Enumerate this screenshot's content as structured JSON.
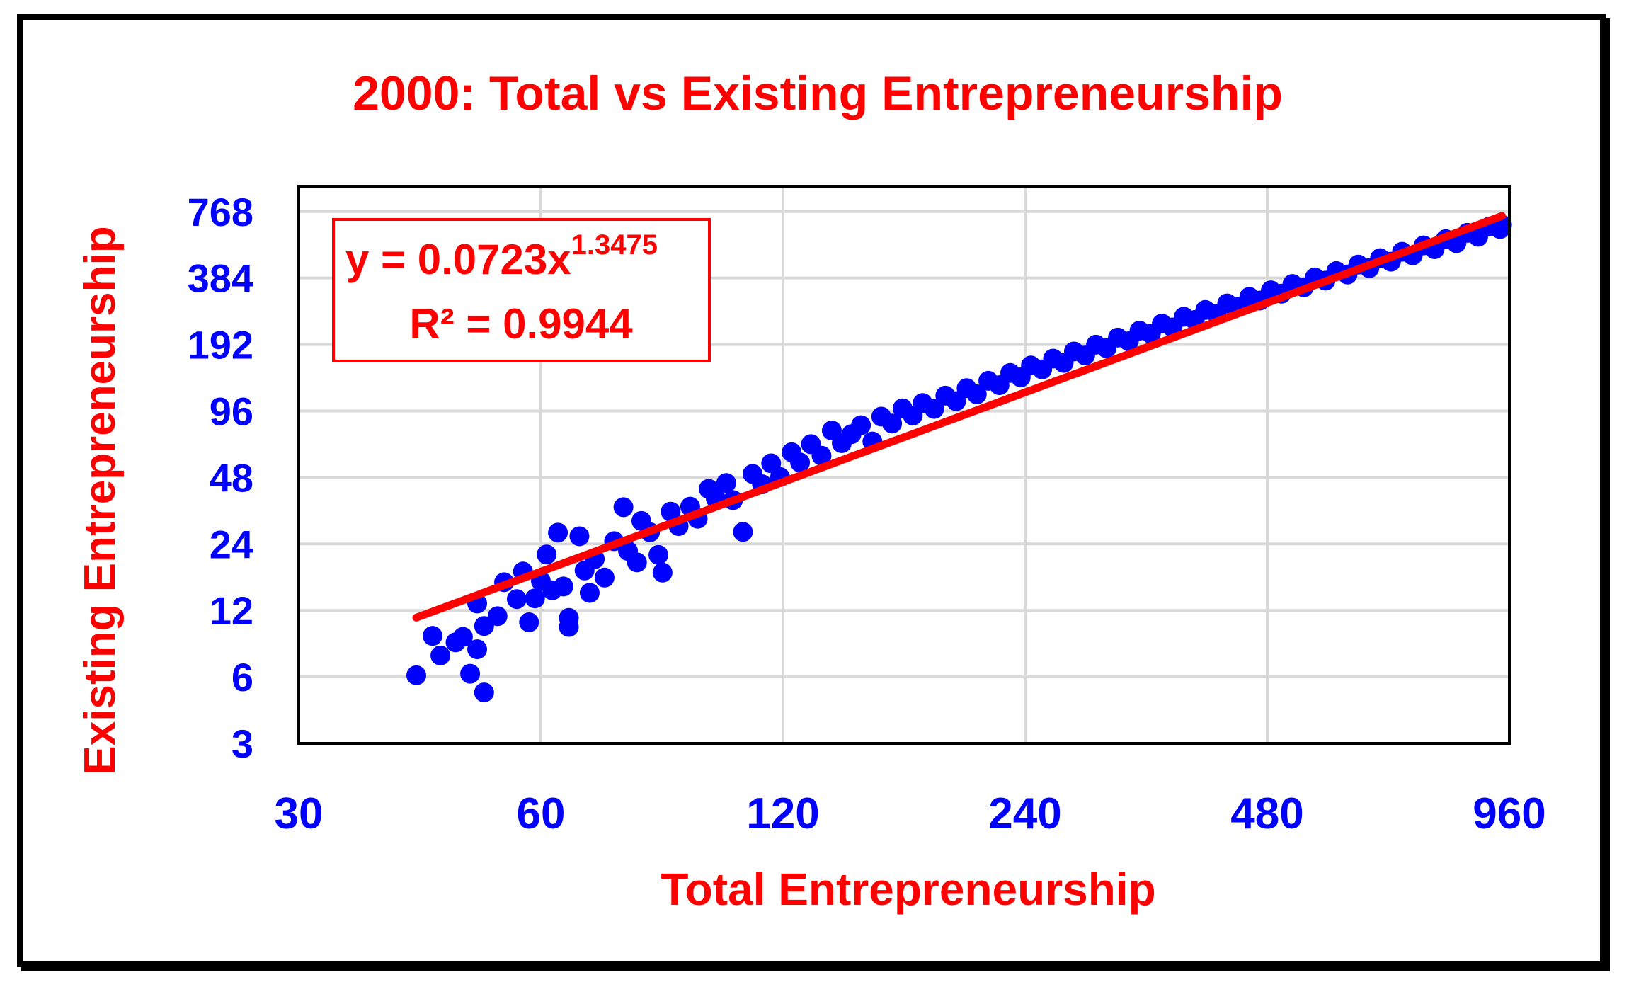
{
  "chart_data": {
    "type": "scatter",
    "title": "2000: Total vs Existing Entrepreneurship",
    "xlabel": "Total Entrepreneurship",
    "ylabel": "Existing Entrepreneurship",
    "x_scale": "log2",
    "y_scale": "log2",
    "xlim": [
      30,
      960
    ],
    "ylim": [
      3,
      1000
    ],
    "x_ticks": [
      "30",
      "60",
      "120",
      "240",
      "480",
      "960"
    ],
    "y_ticks": [
      "3",
      "6",
      "12",
      "24",
      "48",
      "96",
      "192",
      "384",
      "768"
    ],
    "grid": true,
    "trendline": {
      "type": "power",
      "coefficient": 0.0723,
      "exponent": 1.3475,
      "x_range": [
        42,
        940
      ],
      "equation_label": "y = 0.0723x",
      "exponent_label": "1.3475",
      "r2_label": "R² = 0.9944"
    },
    "series": [
      {
        "points": [
          [
            42,
            6.1
          ],
          [
            44,
            9.2
          ],
          [
            45,
            7.5
          ],
          [
            47,
            8.6
          ],
          [
            48,
            9.1
          ],
          [
            49,
            6.2
          ],
          [
            50,
            8.0
          ],
          [
            51,
            10.2
          ],
          [
            51,
            5.1
          ],
          [
            50,
            12.9
          ],
          [
            53,
            11.3
          ],
          [
            54,
            16.1
          ],
          [
            56,
            13.5
          ],
          [
            57,
            18.0
          ],
          [
            58,
            10.6
          ],
          [
            59,
            13.6
          ],
          [
            60,
            16.3
          ],
          [
            61,
            21.5
          ],
          [
            62,
            14.8
          ],
          [
            63,
            27.0
          ],
          [
            64,
            15.4
          ],
          [
            65,
            11.1
          ],
          [
            65,
            10.1
          ],
          [
            67,
            26.0
          ],
          [
            68,
            18.2
          ],
          [
            69,
            14.4
          ],
          [
            70,
            20.5
          ],
          [
            72,
            16.9
          ],
          [
            74,
            24.7
          ],
          [
            76,
            35.2
          ],
          [
            77,
            22.3
          ],
          [
            79,
            19.8
          ],
          [
            80,
            30.5
          ],
          [
            82,
            27.1
          ],
          [
            84,
            21.4
          ],
          [
            85,
            17.8
          ],
          [
            87,
            33.6
          ],
          [
            89,
            28.9
          ],
          [
            92,
            35.4
          ],
          [
            94,
            31.2
          ],
          [
            97,
            42.6
          ],
          [
            99,
            38.5
          ],
          [
            102,
            45.3
          ],
          [
            104,
            37.9
          ],
          [
            107,
            27.2
          ],
          [
            110,
            49.8
          ],
          [
            113,
            44.7
          ],
          [
            116,
            55.6
          ],
          [
            119,
            48.2
          ],
          [
            123,
            62.4
          ],
          [
            126,
            56.1
          ],
          [
            130,
            67.9
          ],
          [
            134,
            60.2
          ],
          [
            138,
            78.3
          ],
          [
            142,
            68.6
          ],
          [
            146,
            75.4
          ],
          [
            150,
            82.7
          ],
          [
            155,
            69.8
          ],
          [
            159,
            90.5
          ],
          [
            164,
            84.2
          ],
          [
            169,
            98.7
          ],
          [
            174,
            91.5
          ],
          [
            179,
            104.3
          ],
          [
            185,
            98.1
          ],
          [
            191,
            112.6
          ],
          [
            197,
            106.4
          ],
          [
            203,
            121.8
          ],
          [
            209,
            114.2
          ],
          [
            216,
            131.5
          ],
          [
            223,
            125.6
          ],
          [
            230,
            142.7
          ],
          [
            237,
            136.3
          ],
          [
            244,
            154.2
          ],
          [
            252,
            148.1
          ],
          [
            260,
            165.7
          ],
          [
            268,
            158.4
          ],
          [
            276,
            178.5
          ],
          [
            285,
            171.2
          ],
          [
            294,
            191.6
          ],
          [
            303,
            184.7
          ],
          [
            313,
            206.3
          ],
          [
            323,
            198.5
          ],
          [
            333,
            221.8
          ],
          [
            344,
            214.6
          ],
          [
            355,
            238.7
          ],
          [
            366,
            229.4
          ],
          [
            378,
            256.3
          ],
          [
            390,
            247.8
          ],
          [
            402,
            275.2
          ],
          [
            415,
            264.9
          ],
          [
            428,
            294.6
          ],
          [
            442,
            284.3
          ],
          [
            456,
            315.4
          ],
          [
            470,
            303.7
          ],
          [
            485,
            337.6
          ],
          [
            500,
            326.2
          ],
          [
            516,
            360.8
          ],
          [
            533,
            348.4
          ],
          [
            550,
            386.1
          ],
          [
            567,
            373.5
          ],
          [
            585,
            412.7
          ],
          [
            604,
            398.2
          ],
          [
            623,
            441.6
          ],
          [
            643,
            425.8
          ],
          [
            663,
            472.3
          ],
          [
            684,
            455.4
          ],
          [
            706,
            504.7
          ],
          [
            728,
            486.3
          ],
          [
            751,
            539.2
          ],
          [
            775,
            518.6
          ],
          [
            800,
            575.8
          ],
          [
            825,
            552.4
          ],
          [
            851,
            614.7
          ],
          [
            878,
            590.3
          ],
          [
            906,
            655.9
          ],
          [
            935,
            640.1
          ],
          [
            940,
            668.5
          ]
        ]
      }
    ],
    "colors": {
      "title": "#ff0000",
      "axis_label": "#ff0000",
      "tick_label": "#0000ff",
      "points": "#0000ff",
      "trendline": "#ff0000",
      "equation_box": "#ff0000",
      "grid": "#d9d9d9",
      "plot_border": "#000000"
    }
  }
}
